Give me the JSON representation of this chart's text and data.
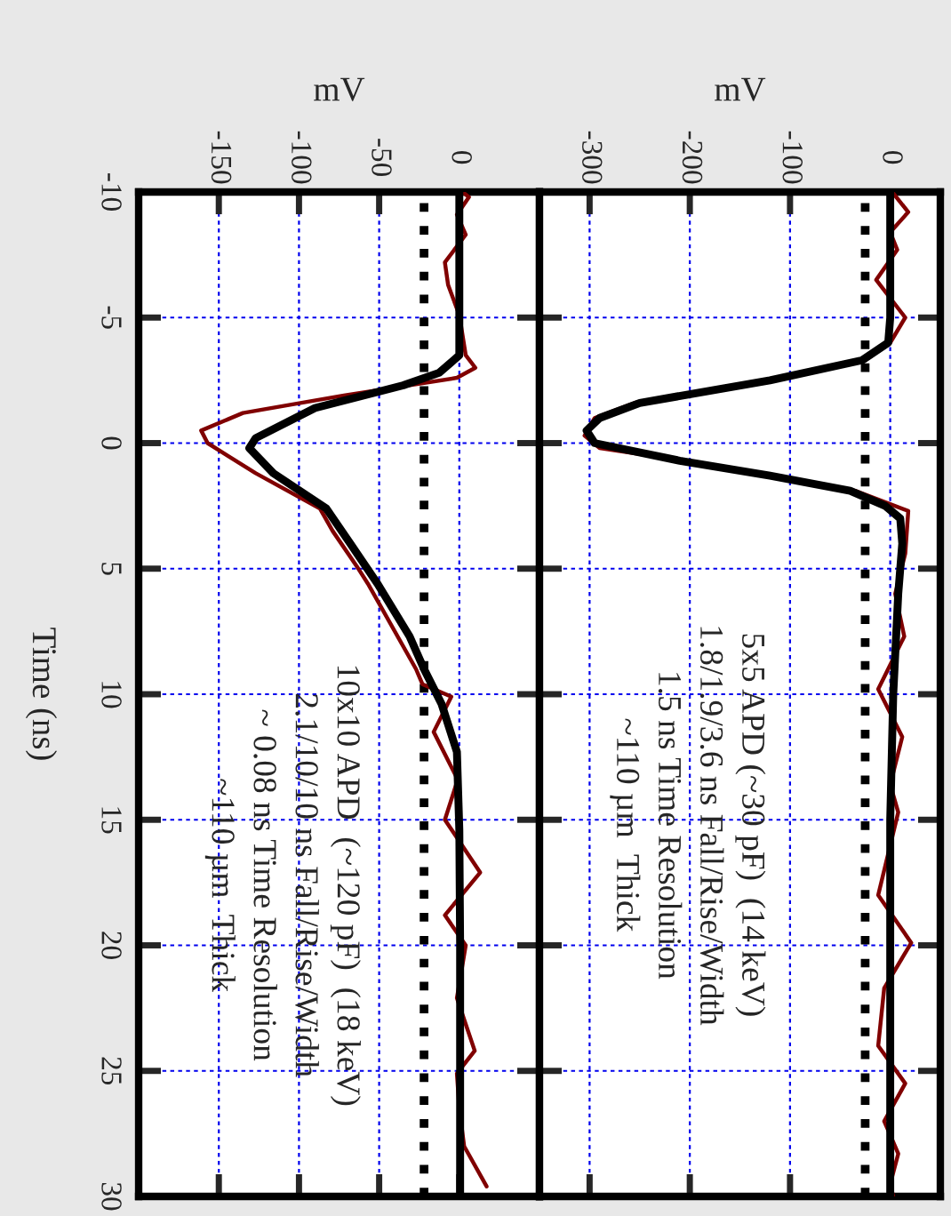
{
  "chart_data": [
    {
      "type": "line",
      "xlabel": "mV",
      "ylabel": "Time (ns)",
      "ylim": [
        30,
        -10
      ],
      "yticks": [
        -10,
        -5,
        0,
        5,
        10,
        15,
        20,
        25,
        30
      ],
      "xlim": [
        -200,
        50
      ],
      "xticks": [
        0,
        -50,
        -100,
        -150
      ],
      "grid": true,
      "line_style": "solid",
      "ref_lines": [
        {
          "axis": "x",
          "value": -22,
          "color": "#000000",
          "line_style": "dotted"
        }
      ],
      "annotations": [
        "10x10 APD  (~120 pF)  (18 keV)",
        "2.1/10/10 ns Fall/Rise/Width",
        "~ 0.08 ns Time Resolution",
        "~110 µm  Thick"
      ],
      "series": [
        {
          "color": "#000000",
          "values": [
            -10,
            -5,
            -3.5,
            -2.8,
            -2.3,
            -1.4,
            -0.2,
            0.2,
            1.2,
            2.6,
            4,
            5.6,
            7.7,
            9,
            10.4,
            12.3,
            15.4,
            20,
            30
          ],
          "x": [
            0,
            0,
            0,
            -12.6,
            -35,
            -90,
            -127,
            -131,
            -116,
            -83,
            -68,
            -51,
            -31,
            -22,
            -11,
            -1.5,
            0,
            0.5,
            0.5
          ]
        },
        {
          "color": "#800000",
          "values": [
            -10,
            -9.8,
            -9.1,
            -8.3,
            -7.2,
            -6.3,
            -5.1,
            -3.5,
            -3,
            -2.6,
            -1.9,
            -1.2,
            -0.5,
            0,
            1.2,
            2.6,
            3.5,
            4.9,
            5.6,
            9,
            9.6,
            10.1,
            11.5,
            13.4,
            15,
            17.1,
            18.8,
            20,
            22.1,
            24.2,
            25.1,
            26.5,
            28,
            29.6
          ],
          "x": [
            2,
            6,
            -1.5,
            4,
            -9,
            -7,
            0,
            4,
            10,
            -1.5,
            -72,
            -135,
            -161,
            -157,
            -127,
            -87,
            -79,
            -64,
            -57,
            -27,
            -23,
            -5,
            -16,
            -1,
            -9,
            13,
            -9,
            4,
            -1.5,
            9.6,
            -1.5,
            0,
            3,
            17
          ]
        }
      ]
    },
    {
      "type": "line",
      "xlabel": "mV",
      "ylim": [
        30,
        -10
      ],
      "yticks": [
        -10,
        -5,
        0,
        5,
        10,
        15,
        20,
        25,
        30
      ],
      "xlim": [
        -350,
        50
      ],
      "xticks": [
        0,
        -100,
        -200,
        -300
      ],
      "tick_labels": "x",
      "grid": true,
      "line_style": "solid",
      "ref_lines": [
        {
          "axis": "x",
          "value": -25,
          "color": "#000000",
          "line_style": "dotted"
        }
      ],
      "annotations": [
        "5x5 APD (~30 pF)  (14 keV)",
        "1.8/1.9/3.6 ns Fall/Rise/Width",
        "1.5 ns Time Resolution",
        "~110 µm  Thick"
      ],
      "series": [
        {
          "color": "#000000",
          "values": [
            -10,
            -5,
            -4,
            -3.3,
            -2.5,
            -1.6,
            -1,
            -0.5,
            0,
            0.7,
            1.3,
            1.9,
            2.5,
            3,
            4,
            6,
            10,
            15,
            20,
            30
          ],
          "x": [
            0,
            0,
            -2,
            -28,
            -120,
            -250,
            -290,
            -303,
            -295,
            -210,
            -120,
            -40,
            -5,
            10,
            12,
            8,
            3,
            0,
            0,
            0
          ]
        },
        {
          "color": "#800000",
          "values": [
            -10,
            -9.2,
            -8.4,
            -7.7,
            -6.5,
            -5,
            -4,
            -3.3,
            -2.5,
            -1.6,
            -1,
            -0.3,
            0.2,
            0.7,
            1.3,
            1.9,
            2.7,
            4.4,
            6,
            7.7,
            9.8,
            11.7,
            13.6,
            14.7,
            18,
            19.9,
            21.7,
            24,
            25.5,
            27,
            28.3,
            29.5,
            30
          ],
          "x": [
            2,
            18,
            0,
            7,
            -14,
            15,
            0,
            -25,
            -125,
            -255,
            -295,
            -305,
            -290,
            -205,
            -115,
            -35,
            18,
            15,
            5,
            14,
            -12,
            12,
            0,
            8,
            -12,
            21,
            -6,
            -12,
            15,
            -6,
            8,
            0,
            3
          ]
        }
      ]
    }
  ]
}
